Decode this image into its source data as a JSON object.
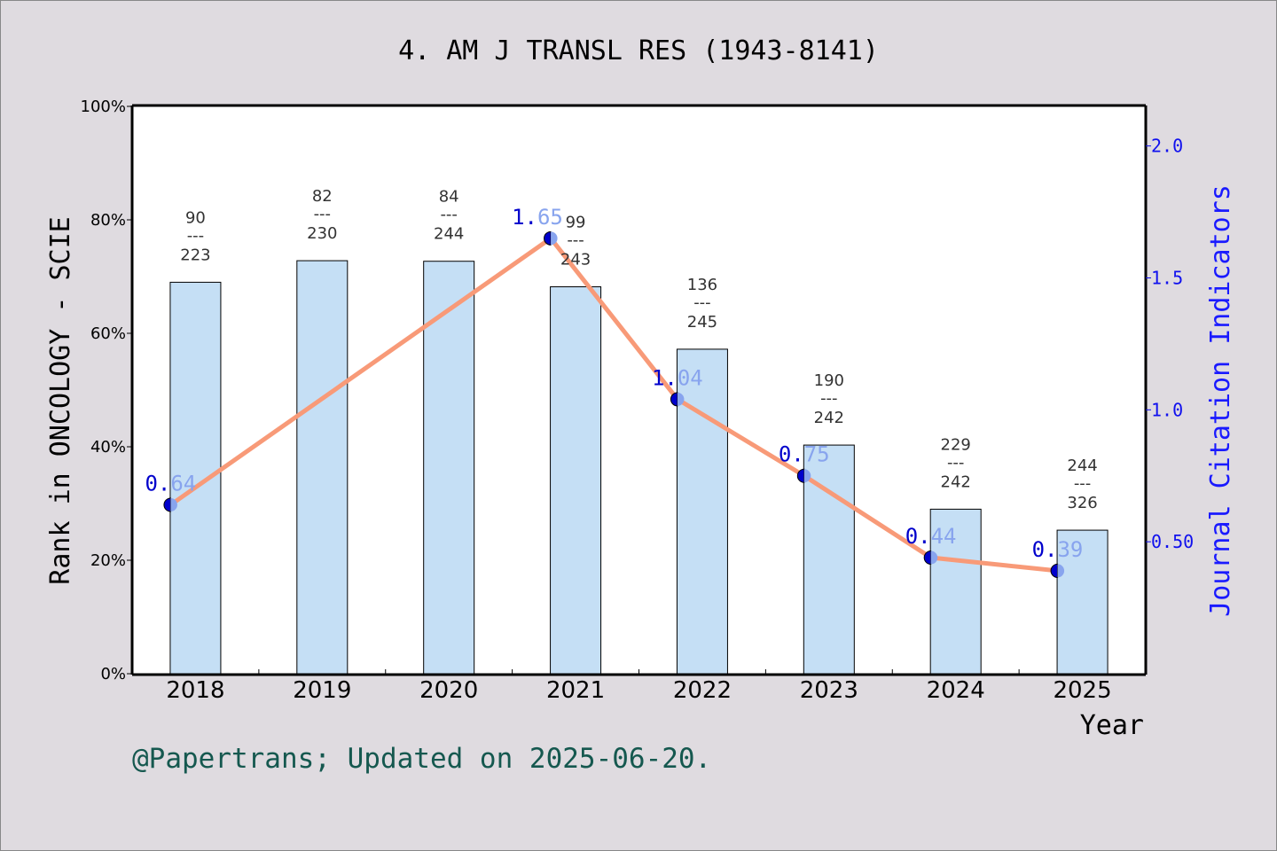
{
  "chart_data": {
    "type": "bar+line",
    "title": "4. AM J TRANSL RES (1943-8141)",
    "xlabel": "Year",
    "ylabel": "Rank in ONCOLOGY - SCIE",
    "y2label": "Journal Citation Indicators",
    "categories": [
      "2018",
      "2019",
      "2020",
      "2021",
      "2022",
      "2023",
      "2024",
      "2025"
    ],
    "ylim": [
      0,
      100
    ],
    "yticks": [
      "0%",
      "20%",
      "40%",
      "60%",
      "80%",
      "100%"
    ],
    "y2lim": [
      0,
      2.15
    ],
    "y2ticks": [
      "0.50",
      "1.0",
      "1.5",
      "2.0"
    ],
    "bar_values_percent": [
      69.0,
      72.8,
      72.7,
      68.2,
      57.2,
      40.3,
      29.0,
      25.3
    ],
    "rank_labels": [
      {
        "rank": "90",
        "total": "223"
      },
      {
        "rank": "82",
        "total": "230"
      },
      {
        "rank": "84",
        "total": "244"
      },
      {
        "rank": "99",
        "total": "243"
      },
      {
        "rank": "136",
        "total": "245"
      },
      {
        "rank": "190",
        "total": "242"
      },
      {
        "rank": "229",
        "total": "242"
      },
      {
        "rank": "244",
        "total": "326"
      }
    ],
    "jci_values": [
      0.64,
      null,
      null,
      1.65,
      1.04,
      0.75,
      0.44,
      0.39
    ],
    "jci_labels": [
      [
        "0.",
        "64"
      ],
      null,
      null,
      [
        "1.",
        "65"
      ],
      [
        "1.",
        "04"
      ],
      [
        "0.",
        "75"
      ],
      [
        "0.",
        "44"
      ],
      [
        "0.",
        "39"
      ]
    ],
    "colors": {
      "bar": "#c5dff5",
      "line": "#f89a78",
      "point_dark": "#0000cc",
      "point_light": "#88a4ee",
      "right_axis": "#1010ee"
    },
    "grid": false
  },
  "footer": "@Papertrans; Updated on 2025-06-20."
}
